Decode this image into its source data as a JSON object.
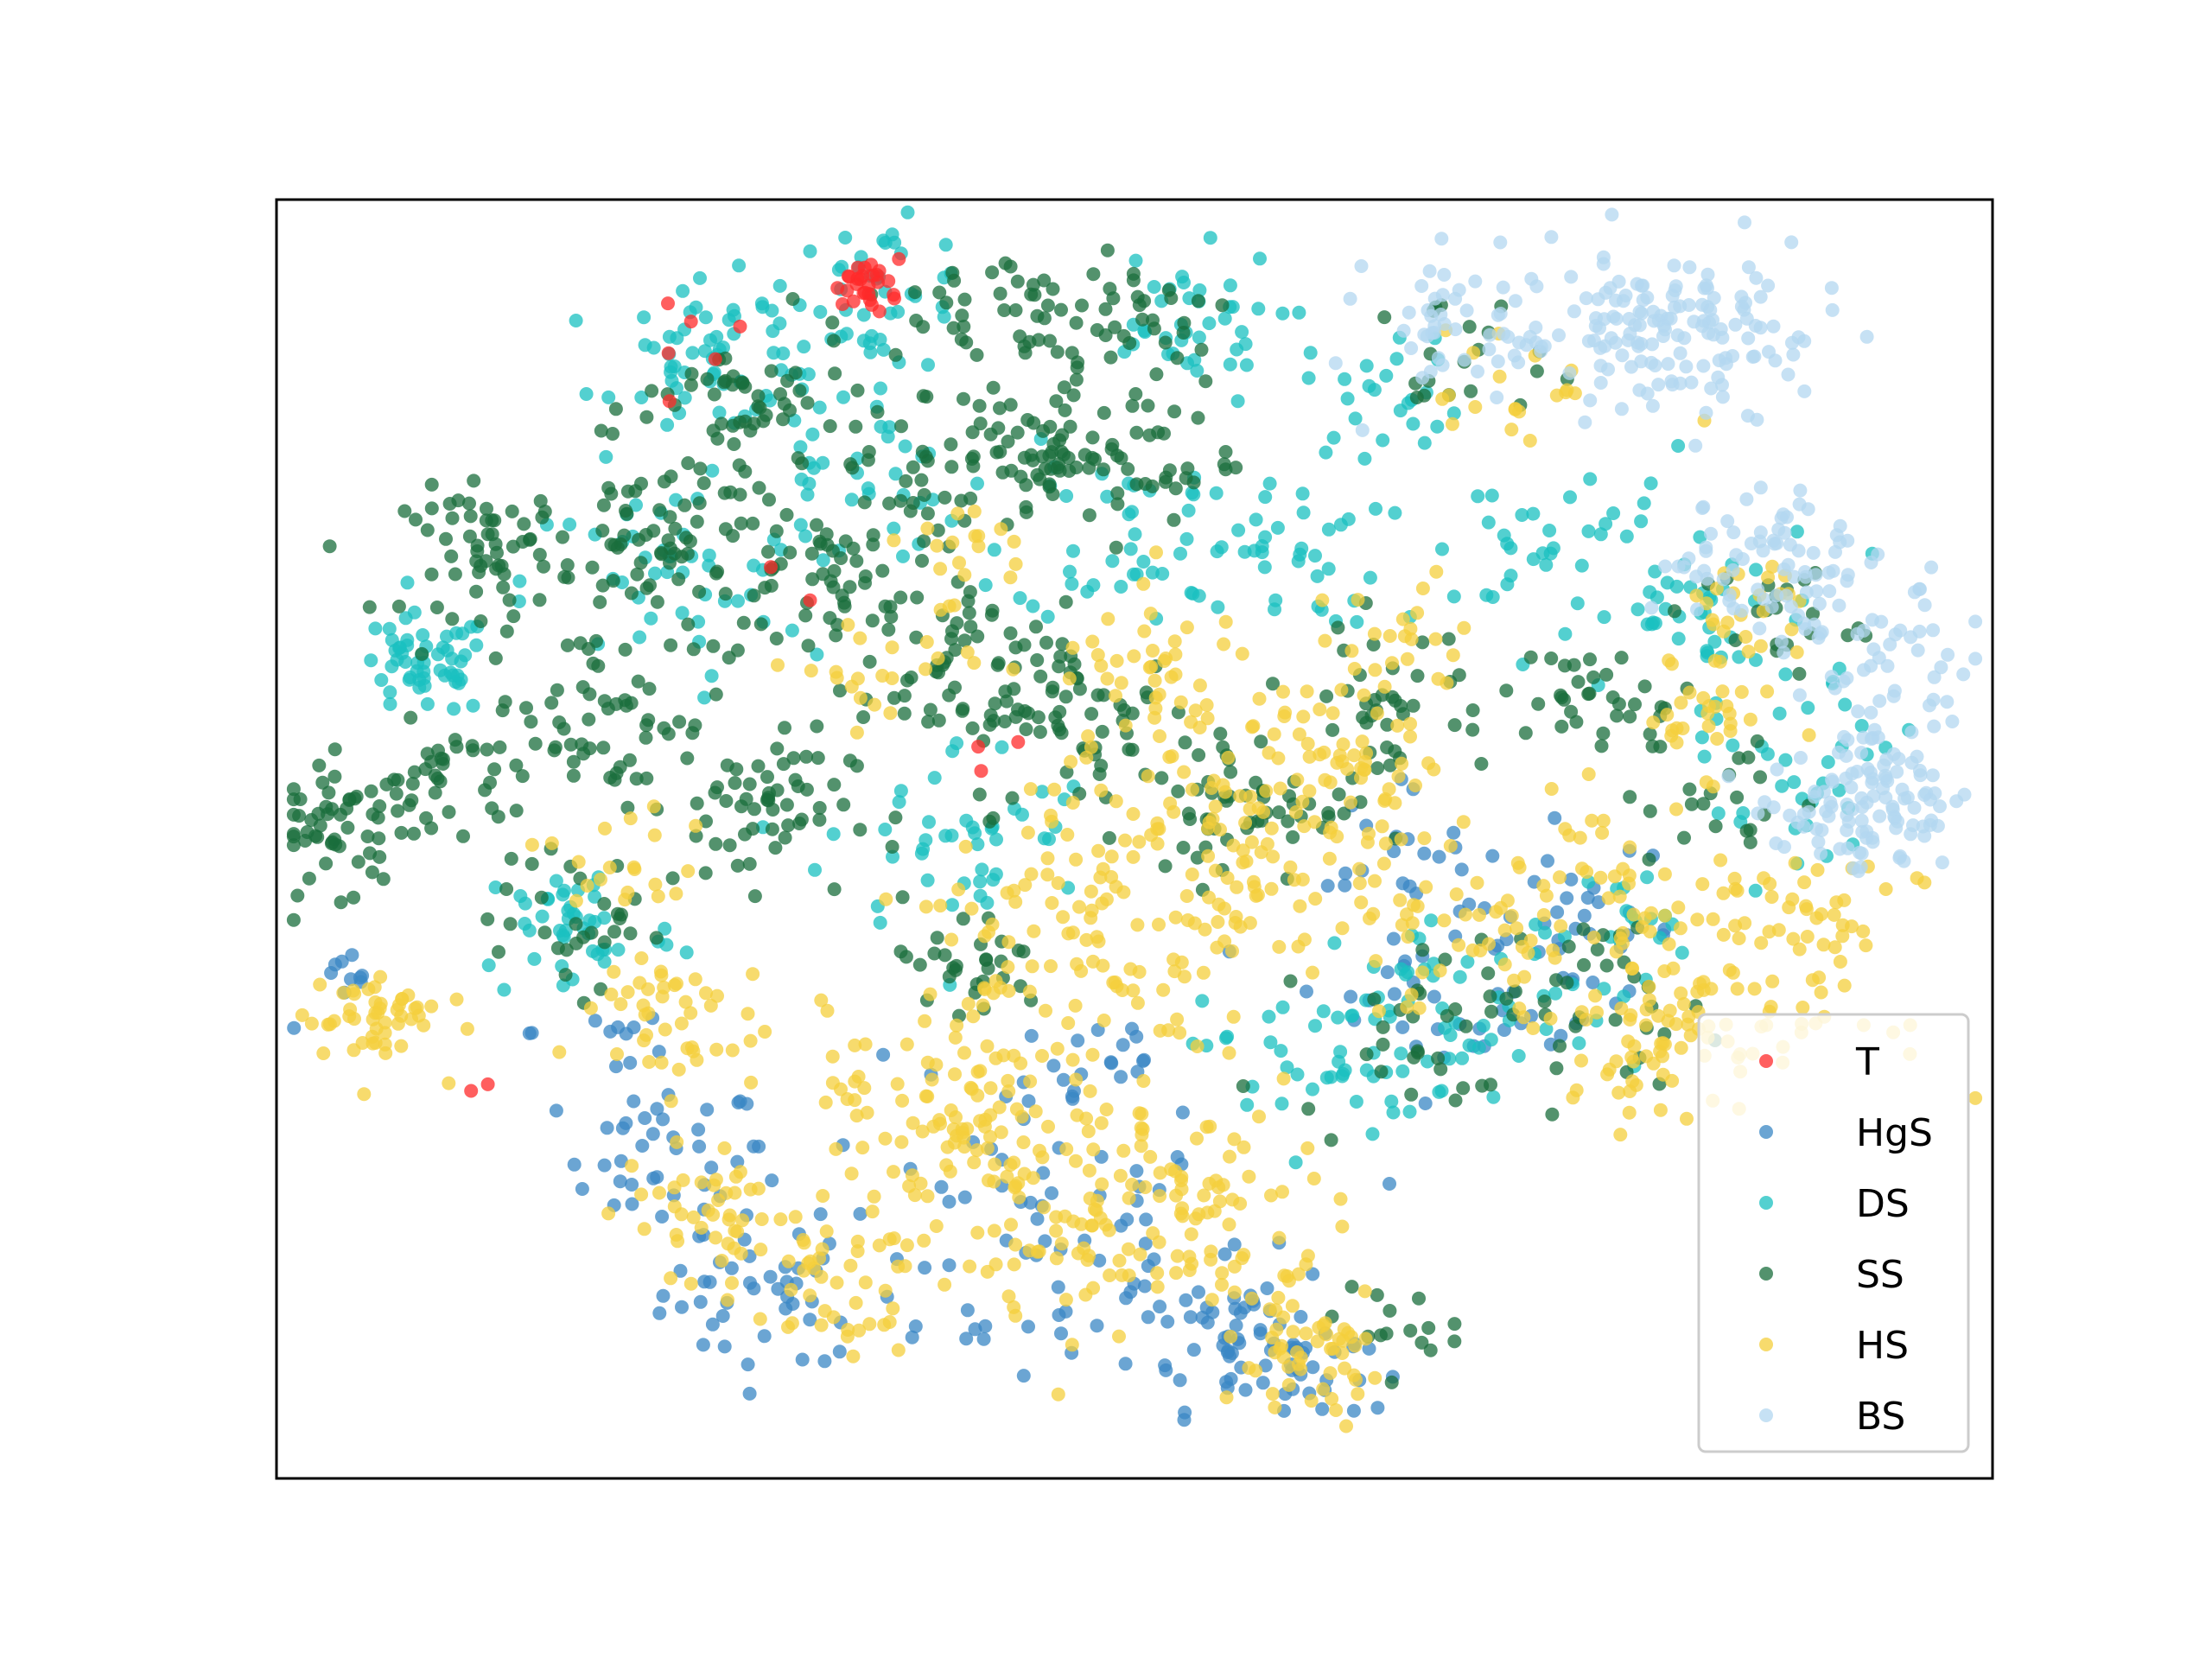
{
  "chart_data": {
    "type": "scatter",
    "title": "",
    "xlabel": "",
    "ylabel": "",
    "xticks": [],
    "yticks": [],
    "grid": false,
    "legend_placement": "lower-right",
    "xlim": [
      -100,
      100
    ],
    "ylim": [
      -100,
      100
    ],
    "series": [
      {
        "name": "T",
        "color": "#ff2a2a",
        "clusters": [
          {
            "cx": -31,
            "cy": 87,
            "spread": 2.0,
            "count": 28
          },
          {
            "cx": -52,
            "cy": 78,
            "spread": 3.5,
            "count": 6
          },
          {
            "cx": -76,
            "cy": -40,
            "spread": 1.0,
            "count": 2
          },
          {
            "cx": -21,
            "cy": 11,
            "spread": 3.0,
            "count": 3
          },
          {
            "cx": -40,
            "cy": 40,
            "spread": 2.0,
            "count": 2
          }
        ]
      },
      {
        "name": "HgS",
        "color": "#3a87c4",
        "clusters": [
          {
            "cx": -43,
            "cy": -71,
            "spread": 6,
            "count": 40
          },
          {
            "cx": -55,
            "cy": -50,
            "spread": 6,
            "count": 40
          },
          {
            "cx": -14,
            "cy": -62,
            "spread": 13,
            "count": 70
          },
          {
            "cx": 12,
            "cy": -77,
            "spread": 6,
            "count": 55
          },
          {
            "cx": 19,
            "cy": -83,
            "spread": 4,
            "count": 25
          },
          {
            "cx": 40,
            "cy": -20,
            "spread": 10,
            "count": 50
          },
          {
            "cx": 52,
            "cy": -15,
            "spread": 6,
            "count": 25
          },
          {
            "cx": 30,
            "cy": 0,
            "spread": 4,
            "count": 15
          },
          {
            "cx": -92,
            "cy": -24,
            "spread": 3,
            "count": 10
          },
          {
            "cx": -5,
            "cy": -35,
            "spread": 5,
            "count": 20
          },
          {
            "cx": -60,
            "cy": -30,
            "spread": 5,
            "count": 10
          }
        ]
      },
      {
        "name": "DS",
        "color": "#19c0c0",
        "clusters": [
          {
            "cx": -83,
            "cy": 27,
            "spread": 4,
            "count": 55
          },
          {
            "cx": -48,
            "cy": 75,
            "spread": 6,
            "count": 60
          },
          {
            "cx": -30,
            "cy": 85,
            "spread": 6,
            "count": 45
          },
          {
            "cx": -33,
            "cy": 57,
            "spread": 7,
            "count": 40
          },
          {
            "cx": -55,
            "cy": 40,
            "spread": 8,
            "count": 45
          },
          {
            "cx": -65,
            "cy": -14,
            "spread": 6,
            "count": 45
          },
          {
            "cx": -20,
            "cy": 0,
            "spread": 8,
            "count": 45
          },
          {
            "cx": 0,
            "cy": 48,
            "spread": 7,
            "count": 40
          },
          {
            "cx": 5,
            "cy": 80,
            "spread": 6,
            "count": 40
          },
          {
            "cx": 17,
            "cy": 45,
            "spread": 6,
            "count": 35
          },
          {
            "cx": 22,
            "cy": -35,
            "spread": 7,
            "count": 45
          },
          {
            "cx": 40,
            "cy": -28,
            "spread": 8,
            "count": 40
          },
          {
            "cx": 50,
            "cy": 45,
            "spread": 8,
            "count": 40
          },
          {
            "cx": 30,
            "cy": 70,
            "spread": 5,
            "count": 25
          },
          {
            "cx": 65,
            "cy": 35,
            "spread": 8,
            "count": 40
          },
          {
            "cx": 80,
            "cy": 15,
            "spread": 6,
            "count": 20
          },
          {
            "cx": 75,
            "cy": 5,
            "spread": 5,
            "count": 15
          },
          {
            "cx": 60,
            "cy": -15,
            "spread": 6,
            "count": 20
          }
        ]
      },
      {
        "name": "SS",
        "color": "#1a6e3c",
        "clusters": [
          {
            "cx": -75,
            "cy": 45,
            "spread": 5,
            "count": 60
          },
          {
            "cx": -92,
            "cy": 2,
            "spread": 5,
            "count": 60
          },
          {
            "cx": -80,
            "cy": 10,
            "spread": 4,
            "count": 30
          },
          {
            "cx": -54,
            "cy": 47,
            "spread": 7,
            "count": 70
          },
          {
            "cx": -45,
            "cy": 67,
            "spread": 6,
            "count": 50
          },
          {
            "cx": -35,
            "cy": 40,
            "spread": 7,
            "count": 55
          },
          {
            "cx": -25,
            "cy": 60,
            "spread": 6,
            "count": 30
          },
          {
            "cx": -62,
            "cy": 20,
            "spread": 7,
            "count": 60
          },
          {
            "cx": -45,
            "cy": 5,
            "spread": 6,
            "count": 60
          },
          {
            "cx": -20,
            "cy": 25,
            "spread": 6,
            "count": 55
          },
          {
            "cx": -12,
            "cy": 60,
            "spread": 5,
            "count": 55
          },
          {
            "cx": 0,
            "cy": 60,
            "spread": 6,
            "count": 40
          },
          {
            "cx": -15,
            "cy": 82,
            "spread": 6,
            "count": 40
          },
          {
            "cx": 0,
            "cy": 82,
            "spread": 6,
            "count": 35
          },
          {
            "cx": -5,
            "cy": 18,
            "spread": 7,
            "count": 60
          },
          {
            "cx": 14,
            "cy": 5,
            "spread": 6,
            "count": 50
          },
          {
            "cx": 30,
            "cy": 22,
            "spread": 6,
            "count": 40
          },
          {
            "cx": -20,
            "cy": -20,
            "spread": 5,
            "count": 30
          },
          {
            "cx": 35,
            "cy": -28,
            "spread": 8,
            "count": 40
          },
          {
            "cx": 55,
            "cy": -25,
            "spread": 6,
            "count": 25
          },
          {
            "cx": 55,
            "cy": 22,
            "spread": 5,
            "count": 35
          },
          {
            "cx": 70,
            "cy": 5,
            "spread": 5,
            "count": 20
          },
          {
            "cx": 75,
            "cy": 35,
            "spread": 5,
            "count": 20
          },
          {
            "cx": 38,
            "cy": 75,
            "spread": 5,
            "count": 20
          },
          {
            "cx": 29,
            "cy": -76,
            "spread": 4,
            "count": 15
          },
          {
            "cx": -65,
            "cy": -13,
            "spread": 5,
            "count": 30
          }
        ]
      },
      {
        "name": "HS",
        "color": "#f4cf3c",
        "clusters": [
          {
            "cx": -89,
            "cy": -28,
            "spread": 4,
            "count": 50
          },
          {
            "cx": -55,
            "cy": -28,
            "spread": 6,
            "count": 45
          },
          {
            "cx": -50,
            "cy": -58,
            "spread": 5,
            "count": 40
          },
          {
            "cx": -37,
            "cy": -70,
            "spread": 6,
            "count": 45
          },
          {
            "cx": -22,
            "cy": -40,
            "spread": 7,
            "count": 55
          },
          {
            "cx": -10,
            "cy": -50,
            "spread": 12,
            "count": 120
          },
          {
            "cx": 5,
            "cy": -60,
            "spread": 9,
            "count": 80
          },
          {
            "cx": -5,
            "cy": -15,
            "spread": 10,
            "count": 90
          },
          {
            "cx": 10,
            "cy": 0,
            "spread": 12,
            "count": 100
          },
          {
            "cx": 25,
            "cy": 10,
            "spread": 8,
            "count": 60
          },
          {
            "cx": 5,
            "cy": 25,
            "spread": 6,
            "count": 40
          },
          {
            "cx": 20,
            "cy": -82,
            "spread": 5,
            "count": 50
          },
          {
            "cx": 40,
            "cy": -15,
            "spread": 8,
            "count": 50
          },
          {
            "cx": 55,
            "cy": -5,
            "spread": 6,
            "count": 30
          },
          {
            "cx": 60,
            "cy": -30,
            "spread": 6,
            "count": 45
          },
          {
            "cx": 70,
            "cy": -25,
            "spread": 9,
            "count": 60
          },
          {
            "cx": 78,
            "cy": -15,
            "spread": 6,
            "count": 40
          },
          {
            "cx": 65,
            "cy": 20,
            "spread": 5,
            "count": 30
          },
          {
            "cx": 72,
            "cy": 35,
            "spread": 5,
            "count": 25
          },
          {
            "cx": -60,
            "cy": -5,
            "spread": 5,
            "count": 20
          },
          {
            "cx": -30,
            "cy": 25,
            "spread": 5,
            "count": 20
          },
          {
            "cx": -20,
            "cy": 45,
            "spread": 5,
            "count": 20
          },
          {
            "cx": 30,
            "cy": 30,
            "spread": 5,
            "count": 20
          },
          {
            "cx": 45,
            "cy": 70,
            "spread": 5,
            "count": 20
          }
        ]
      },
      {
        "name": "BS",
        "color": "#b3d7f0",
        "clusters": [
          {
            "cx": 40,
            "cy": 80,
            "spread": 6,
            "count": 50
          },
          {
            "cx": 55,
            "cy": 82,
            "spread": 6,
            "count": 60
          },
          {
            "cx": 70,
            "cy": 80,
            "spread": 6,
            "count": 60
          },
          {
            "cx": 60,
            "cy": 72,
            "spread": 5,
            "count": 30
          },
          {
            "cx": 70,
            "cy": 45,
            "spread": 5,
            "count": 40
          },
          {
            "cx": 80,
            "cy": 40,
            "spread": 5,
            "count": 40
          },
          {
            "cx": 88,
            "cy": 28,
            "spread": 5,
            "count": 40
          },
          {
            "cx": 88,
            "cy": 12,
            "spread": 5,
            "count": 40
          },
          {
            "cx": 85,
            "cy": 2,
            "spread": 4,
            "count": 30
          },
          {
            "cx": 78,
            "cy": 5,
            "spread": 4,
            "count": 20
          },
          {
            "cx": 90,
            "cy": 5,
            "spread": 4,
            "count": 25
          }
        ]
      }
    ]
  }
}
